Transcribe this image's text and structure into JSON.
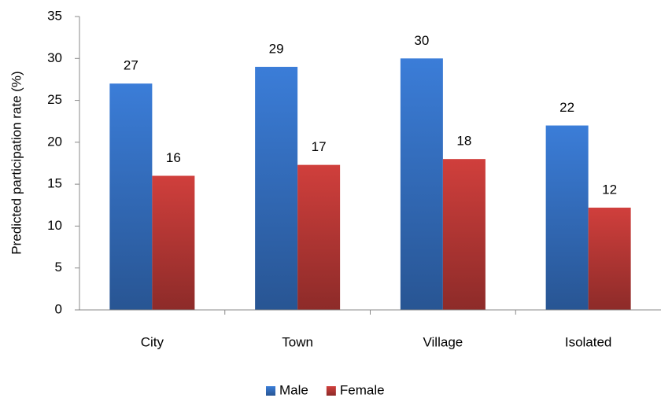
{
  "chart_data": {
    "type": "bar",
    "y_label": "Predicted participation rate (%)",
    "categories": [
      "City",
      "Town",
      "Village",
      "Isolated"
    ],
    "series": [
      {
        "name": "Male",
        "color": "#3b7dd8",
        "values": [
          27,
          29,
          30,
          22
        ]
      },
      {
        "name": "Female",
        "color": "#d03f3c",
        "values": [
          16,
          17.3,
          18,
          12.2
        ],
        "value_labels": [
          "16",
          "17",
          "18",
          "12"
        ]
      }
    ],
    "ylim": [
      0,
      35
    ],
    "yticks": [
      0,
      5,
      10,
      15,
      20,
      25,
      30,
      35
    ],
    "grid": false,
    "legend": "bottom"
  }
}
